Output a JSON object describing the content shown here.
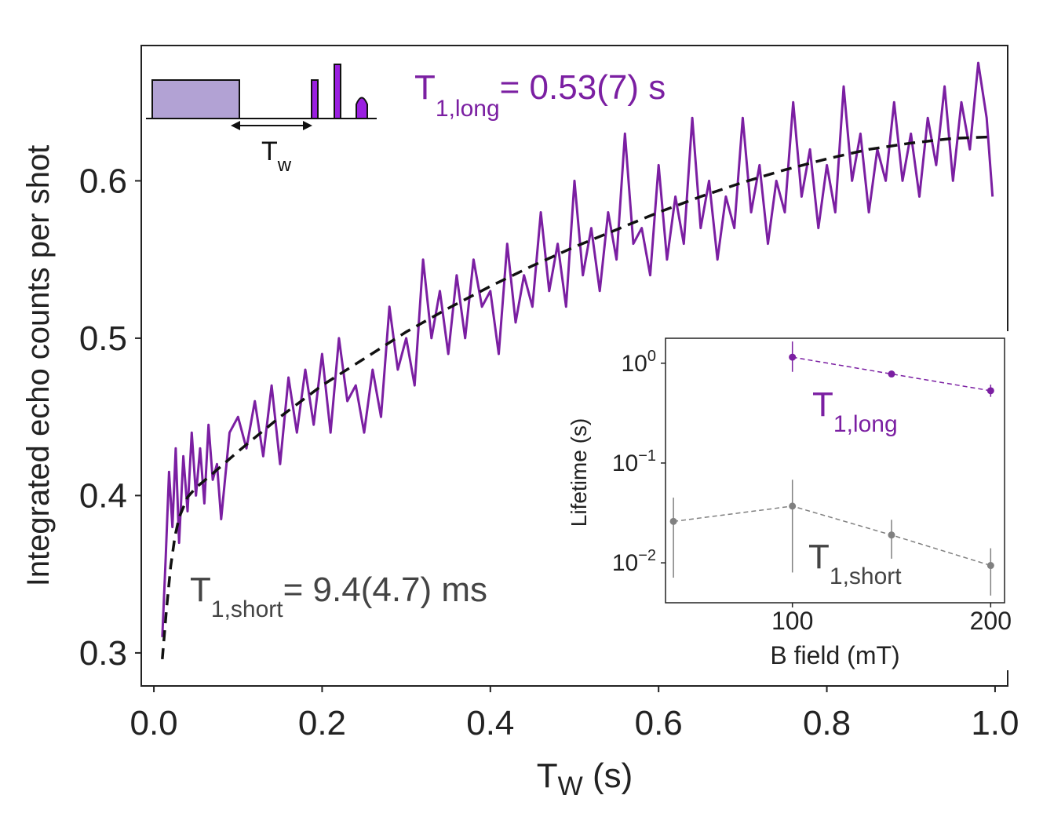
{
  "colors": {
    "purple": "#7B1FA2",
    "purple_fill": "#B2A2D4",
    "pulse_purple": "#9A1FE0",
    "fit_line": "#111111",
    "gray": "#808080",
    "annotation_gray": "#444444",
    "axis": "#222222"
  },
  "main_chart": {
    "chart_data": {
      "type": "line",
      "xlabel_main": "T",
      "xlabel_sub": "W",
      "xlabel_unit": " (s)",
      "ylabel": "Integrated echo counts per shot",
      "xlim": [
        -0.015,
        1.015
      ],
      "ylim": [
        0.279,
        0.686
      ],
      "xticks": [
        0.0,
        0.2,
        0.4,
        0.6,
        0.8,
        1.0
      ],
      "xtick_labels": [
        "0.0",
        "0.2",
        "0.4",
        "0.6",
        "0.8",
        "1.0"
      ],
      "yticks": [
        0.3,
        0.4,
        0.5,
        0.6
      ],
      "ytick_labels": [
        "0.3",
        "0.4",
        "0.5",
        "0.6"
      ],
      "grid": false,
      "series": [
        {
          "style": "solid",
          "x": [
            0.01,
            0.014,
            0.018,
            0.022,
            0.026,
            0.03,
            0.035,
            0.04,
            0.045,
            0.05,
            0.055,
            0.06,
            0.065,
            0.07,
            0.075,
            0.08,
            0.09,
            0.1,
            0.11,
            0.12,
            0.13,
            0.14,
            0.15,
            0.16,
            0.17,
            0.18,
            0.19,
            0.2,
            0.21,
            0.22,
            0.23,
            0.24,
            0.25,
            0.26,
            0.27,
            0.28,
            0.29,
            0.3,
            0.31,
            0.32,
            0.33,
            0.34,
            0.35,
            0.36,
            0.37,
            0.38,
            0.39,
            0.4,
            0.41,
            0.42,
            0.43,
            0.44,
            0.45,
            0.46,
            0.47,
            0.48,
            0.49,
            0.5,
            0.51,
            0.52,
            0.53,
            0.54,
            0.55,
            0.56,
            0.57,
            0.58,
            0.59,
            0.6,
            0.61,
            0.62,
            0.63,
            0.64,
            0.65,
            0.66,
            0.67,
            0.68,
            0.69,
            0.7,
            0.71,
            0.72,
            0.73,
            0.74,
            0.75,
            0.76,
            0.77,
            0.78,
            0.79,
            0.8,
            0.81,
            0.82,
            0.83,
            0.84,
            0.85,
            0.86,
            0.87,
            0.88,
            0.89,
            0.9,
            0.91,
            0.92,
            0.93,
            0.94,
            0.95,
            0.96,
            0.97,
            0.98,
            0.99,
            0.997
          ],
          "y": [
            0.31,
            0.36,
            0.415,
            0.38,
            0.43,
            0.37,
            0.425,
            0.39,
            0.44,
            0.4,
            0.43,
            0.395,
            0.445,
            0.41,
            0.42,
            0.385,
            0.44,
            0.45,
            0.43,
            0.46,
            0.425,
            0.47,
            0.42,
            0.475,
            0.44,
            0.48,
            0.445,
            0.49,
            0.44,
            0.5,
            0.46,
            0.47,
            0.44,
            0.48,
            0.45,
            0.52,
            0.48,
            0.5,
            0.47,
            0.55,
            0.5,
            0.53,
            0.49,
            0.54,
            0.5,
            0.55,
            0.52,
            0.53,
            0.49,
            0.56,
            0.51,
            0.54,
            0.52,
            0.58,
            0.53,
            0.56,
            0.52,
            0.6,
            0.54,
            0.57,
            0.53,
            0.58,
            0.55,
            0.63,
            0.56,
            0.57,
            0.54,
            0.61,
            0.55,
            0.59,
            0.56,
            0.64,
            0.57,
            0.6,
            0.55,
            0.59,
            0.57,
            0.64,
            0.58,
            0.61,
            0.56,
            0.6,
            0.58,
            0.65,
            0.59,
            0.62,
            0.57,
            0.61,
            0.58,
            0.66,
            0.6,
            0.63,
            0.58,
            0.62,
            0.6,
            0.65,
            0.6,
            0.63,
            0.59,
            0.64,
            0.61,
            0.66,
            0.6,
            0.65,
            0.62,
            0.675,
            0.64,
            0.59
          ]
        },
        {
          "style": "dashed",
          "x": [
            0.01,
            0.015,
            0.02,
            0.025,
            0.03,
            0.04,
            0.05,
            0.07,
            0.1,
            0.15,
            0.2,
            0.25,
            0.3,
            0.35,
            0.4,
            0.45,
            0.5,
            0.55,
            0.6,
            0.65,
            0.7,
            0.75,
            0.8,
            0.85,
            0.9,
            0.95,
            0.997
          ],
          "y": [
            0.296,
            0.328,
            0.355,
            0.374,
            0.386,
            0.399,
            0.405,
            0.414,
            0.428,
            0.45,
            0.47,
            0.487,
            0.504,
            0.519,
            0.533,
            0.546,
            0.558,
            0.569,
            0.58,
            0.59,
            0.599,
            0.607,
            0.614,
            0.62,
            0.624,
            0.627,
            0.628
          ]
        }
      ]
    },
    "annotations": {
      "t1_long_main": "T",
      "t1_long_sub": "1,long",
      "t1_long_rest": "= 0.53(7) s",
      "t1_short_main": "T",
      "t1_short_sub": "1,short",
      "t1_short_rest": "= 9.4(4.7) ms"
    },
    "pulse_diagram": {
      "label_main": "T",
      "label_sub": "w"
    }
  },
  "inset_chart": {
    "chart_data": {
      "type": "scatter",
      "xlabel": "B field (mT)",
      "ylabel": "Lifetime (s)",
      "xlim": [
        36,
        207
      ],
      "ylim_log10": [
        -2.4,
        0.25
      ],
      "yscale": "log",
      "xticks": [
        100,
        200
      ],
      "xtick_labels": [
        "100",
        "200"
      ],
      "yticks": [
        1,
        0.1,
        0.01
      ],
      "ytick_bases": [
        "10",
        "10",
        "10"
      ],
      "ytick_exps": [
        "0",
        "−1",
        "−2"
      ],
      "grid": false,
      "series": [
        {
          "label_main": "T",
          "label_sub": "1,long",
          "x": [
            100,
            150,
            200
          ],
          "y": [
            1.15,
            0.78,
            0.53
          ],
          "err_lo": [
            0.82,
            0.73,
            0.46
          ],
          "err_hi": [
            1.65,
            0.83,
            0.61
          ]
        },
        {
          "label_main": "T",
          "label_sub": "1,short",
          "x": [
            40,
            100,
            150,
            200
          ],
          "y": [
            0.026,
            0.037,
            0.019,
            0.0094
          ],
          "err_lo": [
            0.0071,
            0.008,
            0.011,
            0.0047
          ],
          "err_hi": [
            0.045,
            0.068,
            0.027,
            0.014
          ]
        }
      ]
    }
  }
}
